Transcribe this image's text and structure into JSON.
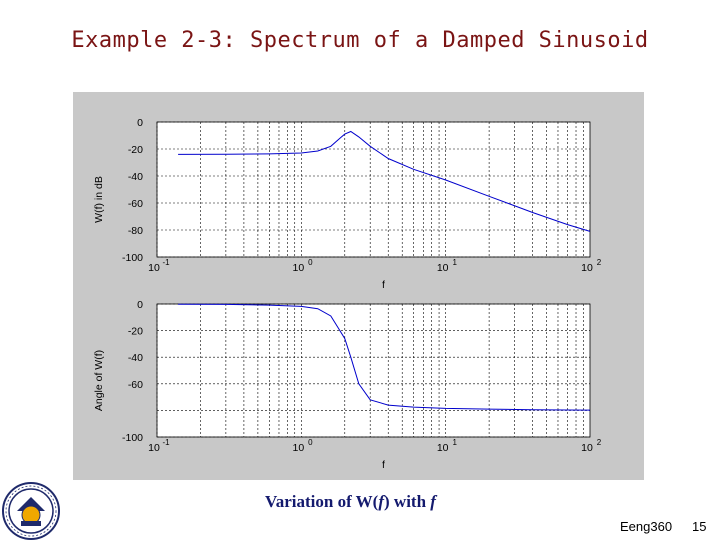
{
  "slide": {
    "title": "Example 2-3: Spectrum of a Damped Sinusoid",
    "caption_prefix": "Variation of W(",
    "caption_var1": "f",
    "caption_mid": ") with ",
    "caption_var2": "f",
    "footer": "Eeng360",
    "page_number": "15",
    "title_color": "#7a1414",
    "caption_color": "#141a6e",
    "logo_icon": "university-seal-icon"
  },
  "chart_data": [
    {
      "type": "line",
      "xscale": "log",
      "xlim": [
        0.1,
        100
      ],
      "ylim": [
        -100,
        0
      ],
      "yticks": [
        "0",
        "-20",
        "-40",
        "-60",
        "-80",
        "-100"
      ],
      "xtick_base": "10",
      "xtick_exponents": [
        "-1",
        "0",
        "1",
        "2"
      ],
      "xlabel": "f",
      "ylabel": "W(f) in dB",
      "grid": true,
      "line_color": "#0000cc",
      "x": [
        0.14,
        0.3,
        0.6,
        1.0,
        1.3,
        1.6,
        1.85,
        2.0,
        2.2,
        2.5,
        3.0,
        4.0,
        6.0,
        10.0,
        20.0,
        40.0,
        70.0,
        100.0
      ],
      "y": [
        -24,
        -23.9,
        -23.6,
        -23,
        -21.5,
        -18,
        -12,
        -9,
        -7,
        -11,
        -18,
        -27,
        -35,
        -43,
        -55,
        -67,
        -76,
        -81
      ]
    },
    {
      "type": "line",
      "xscale": "log",
      "xlim": [
        0.1,
        100
      ],
      "ylim": [
        -100,
        0
      ],
      "yticks": [
        "0",
        "-20",
        "-40",
        "-60",
        "-100"
      ],
      "xtick_base": "10",
      "xtick_exponents": [
        "-1",
        "0",
        "1",
        "2"
      ],
      "xlabel": "f",
      "ylabel": "Angle of W(f)",
      "grid": true,
      "line_color": "#0000cc",
      "x": [
        0.14,
        0.3,
        0.6,
        1.0,
        1.3,
        1.6,
        1.8,
        2.0,
        2.2,
        2.5,
        3.0,
        4.0,
        6.0,
        10.0,
        20.0,
        40.0,
        70.0,
        100.0
      ],
      "y": [
        -0.2,
        -0.3,
        -0.8,
        -1.8,
        -3.5,
        -9,
        -18,
        -26,
        -40,
        -60,
        -72,
        -76,
        -77.5,
        -78.5,
        -79,
        -79.5,
        -79.7,
        -79.8
      ]
    }
  ]
}
